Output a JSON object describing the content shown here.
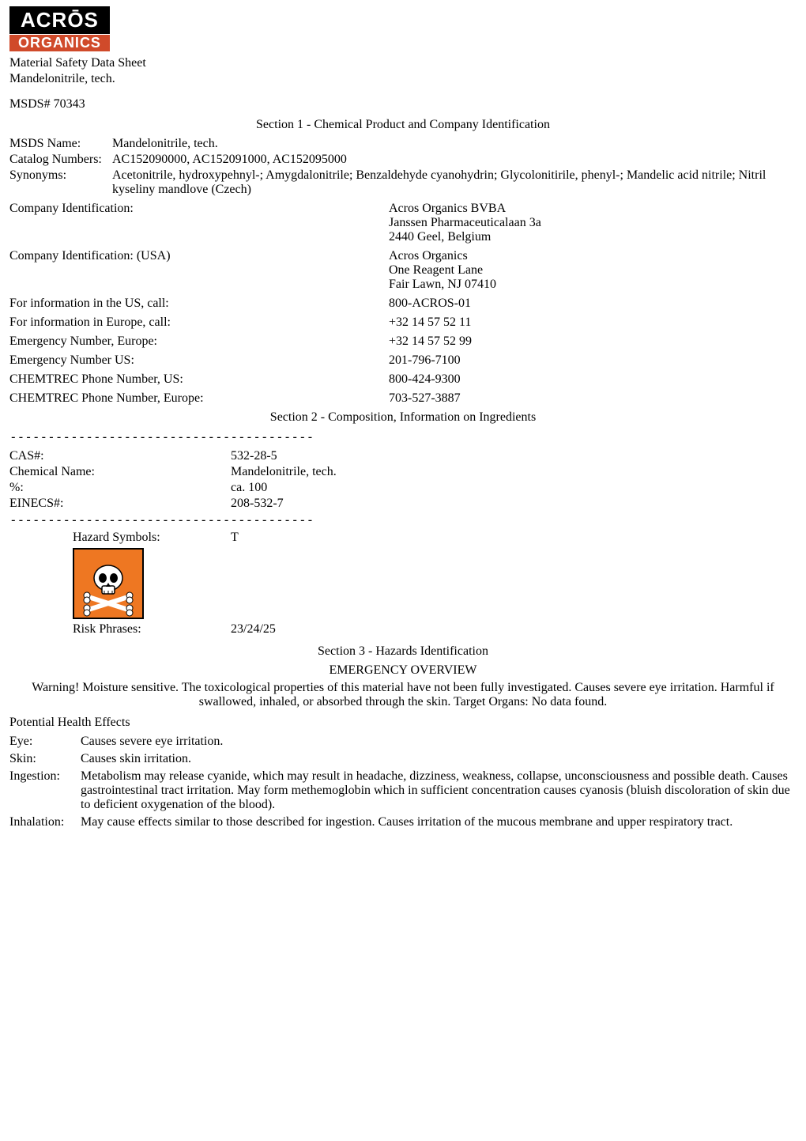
{
  "logo": {
    "top": "ACRŌS",
    "bottom": "ORGANICS"
  },
  "header": {
    "msds_title": "Material Safety Data Sheet",
    "product_name": "Mandelonitrile, tech.",
    "msds_number_label": "MSDS# 70343"
  },
  "section1": {
    "title": "Section 1 - Chemical Product and Company Identification",
    "rows": [
      {
        "label": "MSDS Name:",
        "value": "Mandelonitrile, tech."
      },
      {
        "label": "Catalog Numbers:",
        "value": "AC152090000, AC152091000, AC152095000"
      },
      {
        "label": "Synonyms:",
        "value": "Acetonitrile, hydroxypehnyl-; Amygdalonitrile; Benzaldehyde cyanohydrin; Glycolonitirile, phenyl-; Mandelic acid nitrile; Nitril kyseliny mandlove (Czech)"
      }
    ],
    "company_rows": [
      {
        "left": "Company Identification:",
        "right_lines": [
          "Acros Organics BVBA",
          "Janssen Pharmaceuticalaan 3a",
          "2440 Geel, Belgium"
        ]
      },
      {
        "left": "Company Identification: (USA)",
        "right_lines": [
          "Acros Organics",
          "One Reagent Lane",
          "Fair Lawn, NJ 07410"
        ]
      },
      {
        "left": "For information in the US, call:",
        "right_lines": [
          "800-ACROS-01"
        ]
      },
      {
        "left": "For information in Europe, call:",
        "right_lines": [
          "+32 14 57 52 11"
        ]
      },
      {
        "left": "Emergency Number, Europe:",
        "right_lines": [
          "+32 14 57 52 99"
        ]
      },
      {
        "left": "Emergency Number US:",
        "right_lines": [
          "201-796-7100"
        ]
      },
      {
        "left": "CHEMTREC Phone Number, US:",
        "right_lines": [
          "800-424-9300"
        ]
      },
      {
        "left": "CHEMTREC Phone Number, Europe:",
        "right_lines": [
          "703-527-3887"
        ]
      }
    ]
  },
  "section2": {
    "title": "Section 2 - Composition, Information on Ingredients",
    "dashes": "----------------------------------------",
    "rows": [
      {
        "label": "CAS#:",
        "value": "532-28-5"
      },
      {
        "label": "Chemical Name:",
        "value": "Mandelonitrile, tech."
      },
      {
        "label": "%:",
        "value": "ca. 100"
      },
      {
        "label": "EINECS#:",
        "value": "208-532-7"
      }
    ],
    "hazard_label": "Hazard Symbols:",
    "hazard_value": "T",
    "risk_label": "Risk Phrases:",
    "risk_value": "23/24/25"
  },
  "section3": {
    "title": "Section 3 - Hazards Identification",
    "overview_title": "EMERGENCY OVERVIEW",
    "warning": "Warning! Moisture sensitive. The toxicological properties of this material have not been fully investigated. Causes severe eye irritation. Harmful if swallowed, inhaled, or absorbed through the skin. Target Organs: No data found.",
    "potential_health": "Potential Health Effects",
    "effects": [
      {
        "label": "Eye:",
        "value": "Causes severe eye irritation."
      },
      {
        "label": "Skin:",
        "value": "Causes skin irritation."
      },
      {
        "label": "Ingestion:",
        "value": "Metabolism may release cyanide, which may result in headache, dizziness, weakness, collapse, unconsciousness and possible death. Causes gastrointestinal tract irritation. May form methemoglobin which in sufficient concentration causes cyanosis (bluish discoloration of skin due to deficient oxygenation of the blood)."
      },
      {
        "label": "Inhalation:",
        "value": "May cause effects similar to those described for ingestion. Causes irritation of the mucous membrane and upper respiratory tract."
      }
    ]
  },
  "pictogram": {
    "bg": "#ee7722",
    "border": "#000000",
    "skull": "#ffffff"
  }
}
